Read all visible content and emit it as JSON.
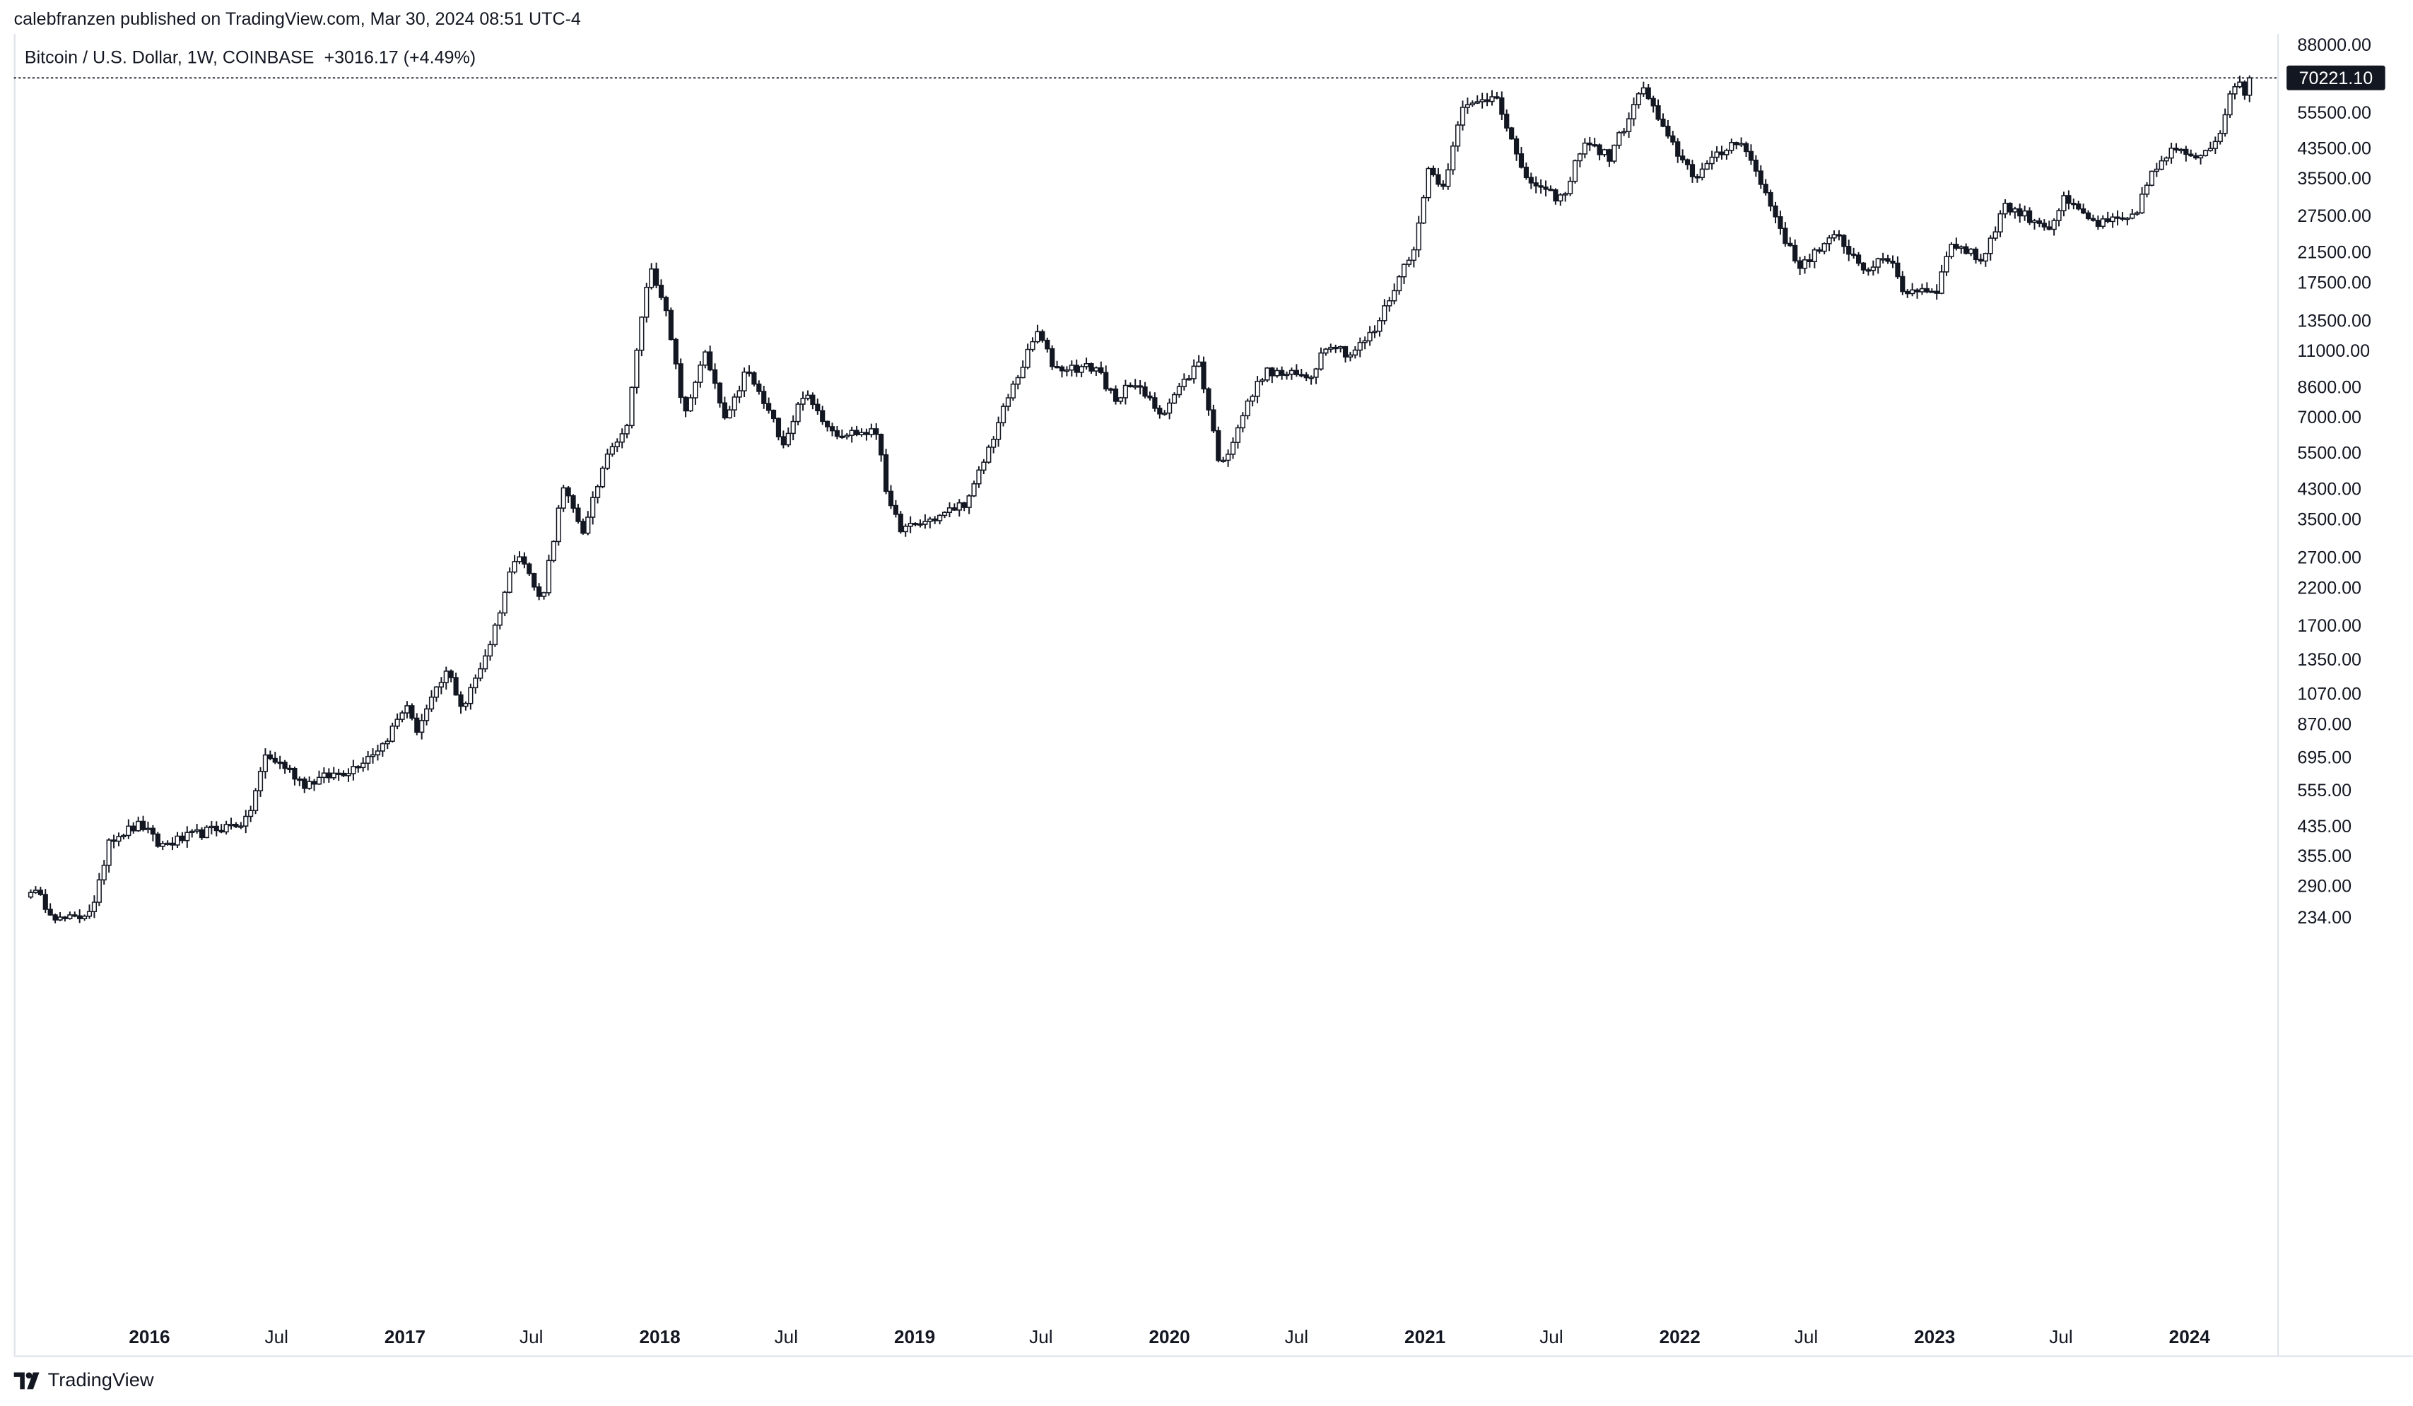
{
  "header": {
    "publisher_line": "calebfranzen published on TradingView.com, Mar 30, 2024 08:51 UTC-4",
    "symbol": "Bitcoin / U.S. Dollar, 1W, COINBASE",
    "change": "+3016.17 (+4.49%)"
  },
  "footer": {
    "logo_text": "TradingView",
    "logo_icon": "tradingview-logo-icon"
  },
  "chart_data": {
    "type": "candlestick",
    "title": "Bitcoin / U.S. Dollar, 1W, COINBASE",
    "interval": "1W",
    "scale": "log",
    "y_axis_position": "right",
    "grid": false,
    "last_price_label": "70221.10",
    "y_ticks": [
      "88000.00",
      "55500.00",
      "43500.00",
      "35500.00",
      "27500.00",
      "21500.00",
      "17500.00",
      "13500.00",
      "11000.00",
      "8600.00",
      "7000.00",
      "5500.00",
      "4300.00",
      "3500.00",
      "2700.00",
      "2200.00",
      "1700.00",
      "1350.00",
      "1070.00",
      "870.00",
      "695.00",
      "555.00",
      "435.00",
      "355.00",
      "290.00",
      "234.00"
    ],
    "x_ticks": [
      {
        "label": "2016",
        "bold": true
      },
      {
        "label": "Jul",
        "bold": false
      },
      {
        "label": "2017",
        "bold": true
      },
      {
        "label": "Jul",
        "bold": false
      },
      {
        "label": "2018",
        "bold": true
      },
      {
        "label": "Jul",
        "bold": false
      },
      {
        "label": "2019",
        "bold": true
      },
      {
        "label": "Jul",
        "bold": false
      },
      {
        "label": "2020",
        "bold": true
      },
      {
        "label": "Jul",
        "bold": false
      },
      {
        "label": "2021",
        "bold": true
      },
      {
        "label": "Jul",
        "bold": false
      },
      {
        "label": "2022",
        "bold": true
      },
      {
        "label": "Jul",
        "bold": false
      },
      {
        "label": "2023",
        "bold": true
      },
      {
        "label": "Jul",
        "bold": false
      },
      {
        "label": "2024",
        "bold": true
      }
    ],
    "price_anchors": [
      [
        "2015-07-15",
        285
      ],
      [
        "2015-08-25",
        230
      ],
      [
        "2015-09-20",
        232
      ],
      [
        "2015-10-15",
        255
      ],
      [
        "2015-11-04",
        400
      ],
      [
        "2015-12-20",
        440
      ],
      [
        "2016-01-15",
        380
      ],
      [
        "2016-03-15",
        415
      ],
      [
        "2016-05-20",
        450
      ],
      [
        "2016-06-15",
        700
      ],
      [
        "2016-07-10",
        660
      ],
      [
        "2016-08-10",
        580
      ],
      [
        "2016-10-15",
        640
      ],
      [
        "2016-12-01",
        760
      ],
      [
        "2017-01-04",
        1000
      ],
      [
        "2017-01-15",
        820
      ],
      [
        "2017-03-03",
        1250
      ],
      [
        "2017-03-25",
        960
      ],
      [
        "2017-05-05",
        1550
      ],
      [
        "2017-06-11",
        2900
      ],
      [
        "2017-07-15",
        1980
      ],
      [
        "2017-08-15",
        4300
      ],
      [
        "2017-09-15",
        3200
      ],
      [
        "2017-10-20",
        5800
      ],
      [
        "2017-11-12",
        6200
      ],
      [
        "2017-12-17",
        19500
      ],
      [
        "2018-01-05",
        16000
      ],
      [
        "2018-02-06",
        7000
      ],
      [
        "2018-03-05",
        11000
      ],
      [
        "2018-04-06",
        6700
      ],
      [
        "2018-05-05",
        9700
      ],
      [
        "2018-06-28",
        5900
      ],
      [
        "2018-07-25",
        8200
      ],
      [
        "2018-09-10",
        6300
      ],
      [
        "2018-11-10",
        6300
      ],
      [
        "2018-11-25",
        3800
      ],
      [
        "2018-12-15",
        3250
      ],
      [
        "2019-02-10",
        3600
      ],
      [
        "2019-03-20",
        4000
      ],
      [
        "2019-05-15",
        8000
      ],
      [
        "2019-06-26",
        12500
      ],
      [
        "2019-07-20",
        9800
      ],
      [
        "2019-09-20",
        9800
      ],
      [
        "2019-10-20",
        7400
      ],
      [
        "2019-11-01",
        9200
      ],
      [
        "2019-12-20",
        7200
      ],
      [
        "2020-02-12",
        10200
      ],
      [
        "2020-03-15",
        4900
      ],
      [
        "2020-04-10",
        6800
      ],
      [
        "2020-05-15",
        9500
      ],
      [
        "2020-07-20",
        9200
      ],
      [
        "2020-08-15",
        11800
      ],
      [
        "2020-09-15",
        10700
      ],
      [
        "2020-10-20",
        12500
      ],
      [
        "2020-12-20",
        23500
      ],
      [
        "2021-01-08",
        40000
      ],
      [
        "2021-01-25",
        32000
      ],
      [
        "2021-02-20",
        56000
      ],
      [
        "2021-04-14",
        63000
      ],
      [
        "2021-05-19",
        37000
      ],
      [
        "2021-06-22",
        32000
      ],
      [
        "2021-07-20",
        31000
      ],
      [
        "2021-08-15",
        46000
      ],
      [
        "2021-09-22",
        41000
      ],
      [
        "2021-11-10",
        66000
      ],
      [
        "2021-12-10",
        48000
      ],
      [
        "2022-01-22",
        36000
      ],
      [
        "2022-03-28",
        47000
      ],
      [
        "2022-05-10",
        30000
      ],
      [
        "2022-06-18",
        19500
      ],
      [
        "2022-08-15",
        24000
      ],
      [
        "2022-09-20",
        19300
      ],
      [
        "2022-11-05",
        20500
      ],
      [
        "2022-11-12",
        16500
      ],
      [
        "2023-01-05",
        16800
      ],
      [
        "2023-01-25",
        23000
      ],
      [
        "2023-03-10",
        20300
      ],
      [
        "2023-04-10",
        29500
      ],
      [
        "2023-06-15",
        25500
      ],
      [
        "2023-07-05",
        30500
      ],
      [
        "2023-08-20",
        26000
      ],
      [
        "2023-10-15",
        27000
      ],
      [
        "2023-10-30",
        34500
      ],
      [
        "2023-12-05",
        42500
      ],
      [
        "2024-01-15",
        41500
      ],
      [
        "2024-02-10",
        47000
      ],
      [
        "2024-02-28",
        61000
      ],
      [
        "2024-03-14",
        71000
      ],
      [
        "2024-03-20",
        62500
      ],
      [
        "2024-03-30",
        70221
      ]
    ],
    "series_color": "#131722"
  }
}
